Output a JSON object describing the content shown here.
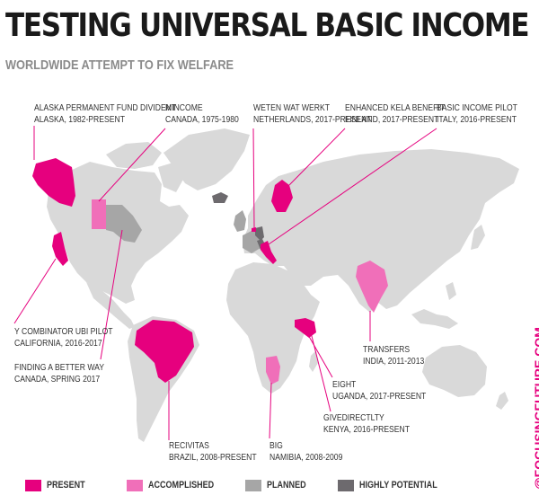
{
  "header": {
    "title": "TESTING UNIVERSAL BASIC INCOME",
    "subtitle": "WORLDWIDE ATTEMPT TO FIX WELFARE"
  },
  "colors": {
    "present": "#e6007e",
    "accomplished": "#f06fb9",
    "planned": "#a6a6a6",
    "highly_potential": "#6d6a6e",
    "land": "#d9d9d9",
    "leader": "#e6007e",
    "credit": "#e6007e"
  },
  "programs": [
    {
      "name": "ALASKA PERMANENT FUND DIVIDENT",
      "detail": "ALASKA, 1982-PRESENT",
      "status": "present"
    },
    {
      "name": "MINCOME",
      "detail": "CANADA, 1975-1980",
      "status": "accomplished"
    },
    {
      "name": "WETEN WAT WERKT",
      "detail": "NETHERLANDS, 2017-PRESENT",
      "status": "present"
    },
    {
      "name": "ENHANCED KELA BENEFIT",
      "detail": "FINLAND, 2017-PRESENT",
      "status": "present"
    },
    {
      "name": "BASIC INCOME PILOT",
      "detail": "ITALY, 2016-PRESENT",
      "status": "present"
    },
    {
      "name": "Y COMBINATOR UBI PILOT",
      "detail": "CALIFORNIA, 2016-2017",
      "status": "present"
    },
    {
      "name": "FINDING A BETTER WAY",
      "detail": "CANADA, SPRING 2017",
      "status": "planned"
    },
    {
      "name": "TRANSFERS",
      "detail": "INDIA, 2011-2013",
      "status": "accomplished"
    },
    {
      "name": "EIGHT",
      "detail": "UGANDA, 2017-PRESENT",
      "status": "present"
    },
    {
      "name": "GIVEDIRECTLTY",
      "detail": "KENYA, 2016-PRESENT",
      "status": "present"
    },
    {
      "name": "RECIVITAS",
      "detail": "BRAZIL, 2008-PRESENT",
      "status": "present"
    },
    {
      "name": "BIG",
      "detail": "NAMIBIA, 2008-2009",
      "status": "accomplished"
    }
  ],
  "legend": [
    {
      "label": "PRESENT",
      "color": "#e6007e"
    },
    {
      "label": "ACCOMPLISHED",
      "color": "#f06fb9"
    },
    {
      "label": "PLANNED",
      "color": "#a6a6a6"
    },
    {
      "label": "HIGHLY POTENTIAL",
      "color": "#6d6a6e"
    }
  ],
  "credit": "@FOCUSINGFUTURE.COM"
}
